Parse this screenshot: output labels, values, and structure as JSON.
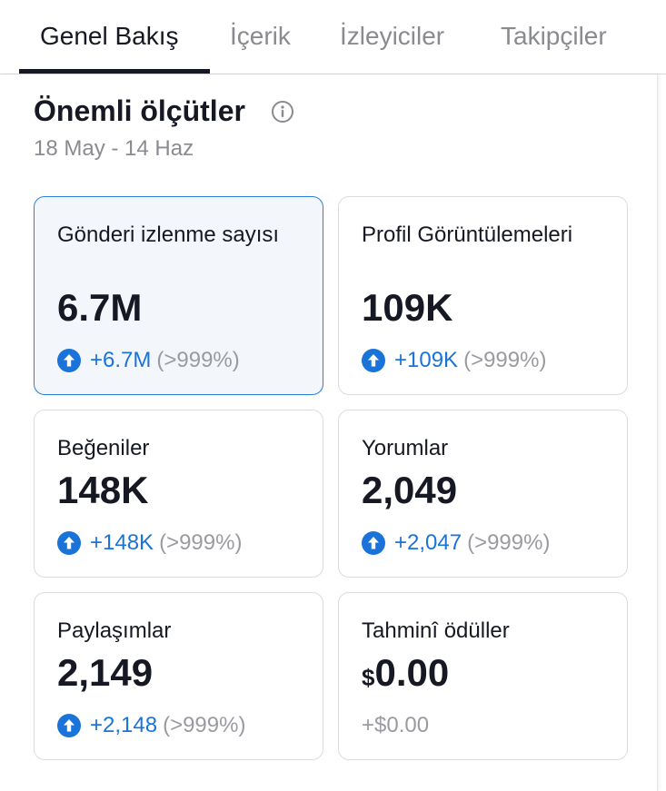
{
  "tabs": [
    {
      "label": "Genel Bakış",
      "active": true
    },
    {
      "label": "İçerik",
      "active": false
    },
    {
      "label": "İzleyiciler",
      "active": false
    },
    {
      "label": "Takipçiler",
      "active": false
    }
  ],
  "section": {
    "title": "Önemli ölçütler",
    "date_range": "18 May - 14 Haz"
  },
  "metrics": [
    {
      "label": "Gönderi izlenme sayısı",
      "value": "6.7M",
      "change": "+6.7M",
      "percent": "(>999%)",
      "selected": true
    },
    {
      "label": "Profil Görüntülemeleri",
      "value": "109K",
      "change": "+109K",
      "percent": "(>999%)"
    },
    {
      "label": "Beğeniler",
      "value": "148K",
      "change": "+148K",
      "percent": "(>999%)"
    },
    {
      "label": "Yorumlar",
      "value": "2,049",
      "change": "+2,047",
      "percent": "(>999%)"
    },
    {
      "label": "Paylaşımlar",
      "value": "2,149",
      "change": "+2,148",
      "percent": "(>999%)"
    },
    {
      "label": "Tahminî ödüller",
      "currency": "$",
      "value": "0.00",
      "change": "+$0.00"
    }
  ],
  "colors": {
    "accent": "#1a73d9",
    "selected_card_bg": "#f3f7fc",
    "selected_card_border": "#2a80d8",
    "muted_text": "#8a8b91"
  },
  "icons": {
    "info": "info-circle-icon",
    "trend": "arrow-up-circle-icon"
  }
}
